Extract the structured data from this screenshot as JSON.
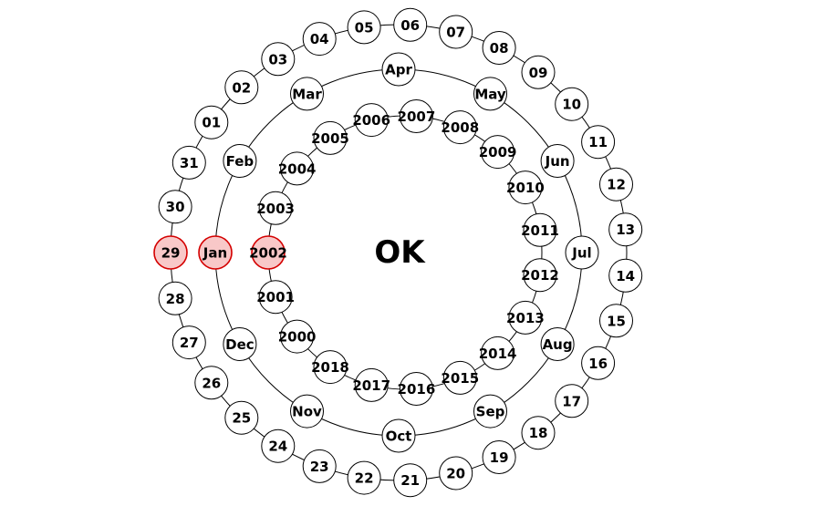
{
  "center_label": "OK",
  "days": {
    "items": [
      "01",
      "02",
      "03",
      "04",
      "05",
      "06",
      "07",
      "08",
      "09",
      "10",
      "11",
      "12",
      "13",
      "14",
      "15",
      "16",
      "17",
      "18",
      "19",
      "20",
      "21",
      "22",
      "23",
      "24",
      "25",
      "26",
      "27",
      "28",
      "29",
      "30",
      "31"
    ],
    "selected": "29"
  },
  "months": {
    "items": [
      "Jan",
      "Feb",
      "Mar",
      "Apr",
      "May",
      "Jun",
      "Jul",
      "Aug",
      "Sep",
      "Oct",
      "Nov",
      "Dec"
    ],
    "selected": "Jan"
  },
  "years": {
    "items": [
      "2000",
      "2001",
      "2002",
      "2003",
      "2004",
      "2005",
      "2006",
      "2007",
      "2008",
      "2009",
      "2010",
      "2011",
      "2012",
      "2013",
      "2014",
      "2015",
      "2016",
      "2017",
      "2018"
    ],
    "selected": "2002"
  },
  "colors": {
    "selected_fill": "#f8c8c8",
    "selected_stroke": "#d40000",
    "ring_stroke": "#000000"
  }
}
